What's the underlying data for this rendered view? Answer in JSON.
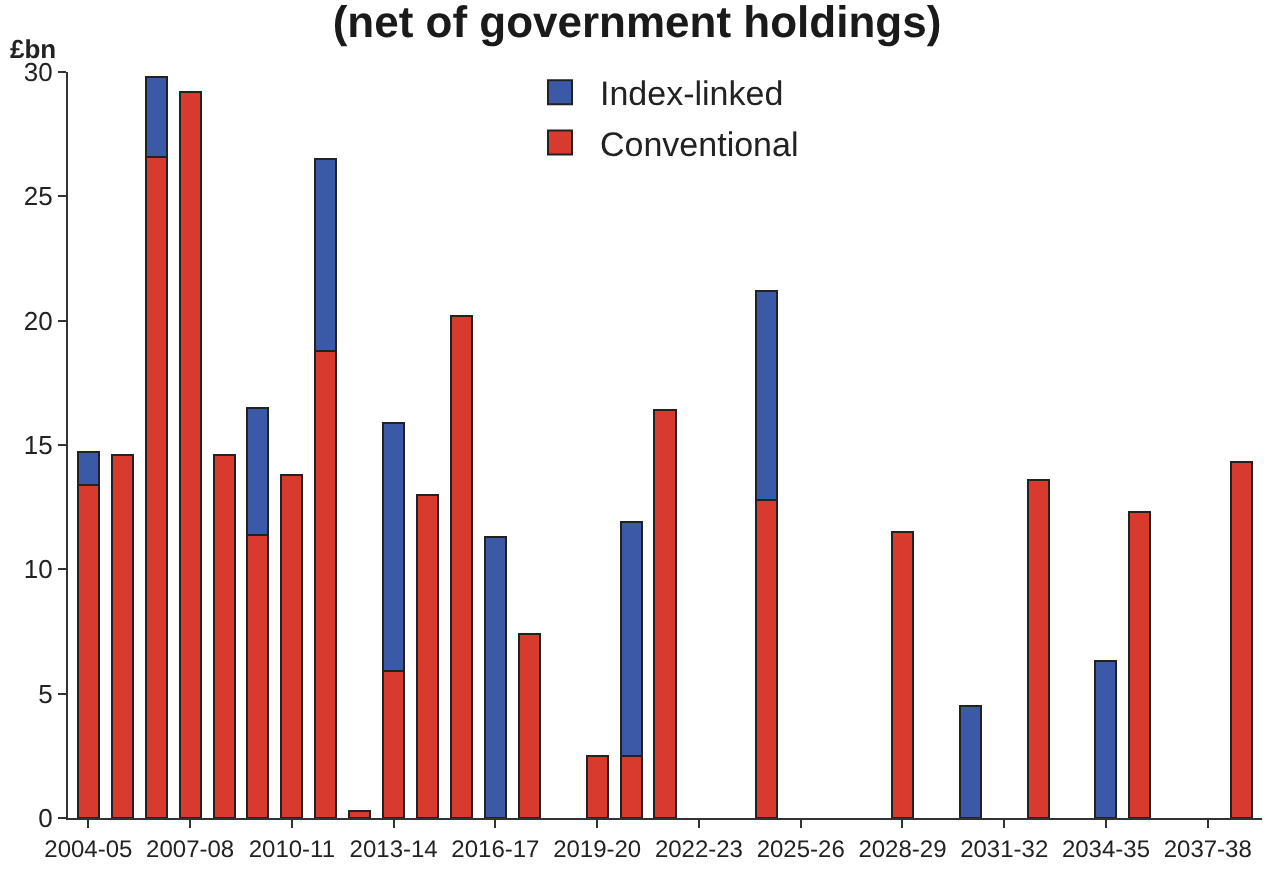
{
  "chart_data": {
    "type": "bar",
    "stacked": true,
    "title": "(net of government holdings)",
    "ylabel": "£bn",
    "categories": [
      "2004-05",
      null,
      null,
      "2007-08",
      null,
      null,
      "2010-11",
      null,
      null,
      "2013-14",
      null,
      null,
      "2016-17",
      null,
      null,
      "2019-20",
      null,
      null,
      "2022-23",
      null,
      null,
      "2025-26",
      null,
      null,
      "2028-29",
      null,
      null,
      "2031-32",
      null,
      null,
      "2034-35",
      null,
      null,
      "2037-38",
      null
    ],
    "series": [
      {
        "name": "Conventional",
        "color": "#d83a2e",
        "values": [
          13.4,
          14.6,
          26.6,
          29.2,
          14.6,
          11.4,
          13.8,
          18.8,
          0.3,
          5.9,
          13.0,
          20.2,
          null,
          7.4,
          null,
          2.5,
          2.5,
          16.4,
          null,
          null,
          12.8,
          null,
          null,
          null,
          11.5,
          null,
          null,
          null,
          13.6,
          null,
          null,
          12.3,
          null,
          null,
          14.3
        ]
      },
      {
        "name": "Index-linked",
        "color": "#3a5aa8",
        "values": [
          1.3,
          null,
          3.2,
          null,
          null,
          5.1,
          null,
          7.7,
          null,
          10.0,
          null,
          null,
          11.3,
          null,
          null,
          null,
          9.4,
          null,
          null,
          null,
          8.4,
          null,
          null,
          null,
          null,
          null,
          4.5,
          null,
          null,
          null,
          6.3,
          null,
          null,
          null,
          null
        ]
      }
    ],
    "ylim": [
      0,
      30
    ],
    "yticks": [
      0,
      5,
      10,
      15,
      20,
      25,
      30
    ],
    "legend": "top"
  }
}
